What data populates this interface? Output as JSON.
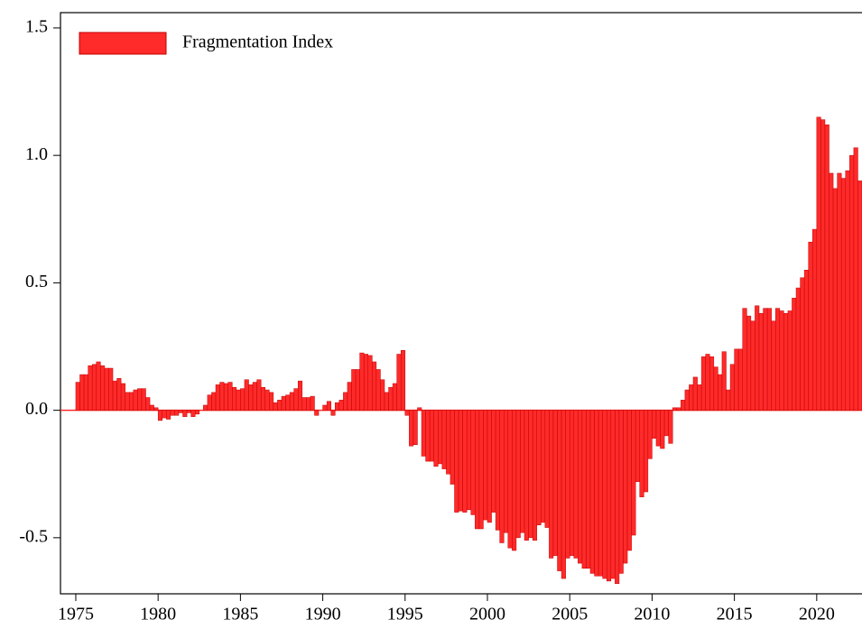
{
  "chart_data": {
    "type": "bar",
    "series": [
      {
        "name": "Fragmentation Index",
        "color": "#ff2a2a",
        "values": [
          0.11,
          0.14,
          0.14,
          0.175,
          0.18,
          0.19,
          0.175,
          0.165,
          0.165,
          0.115,
          0.125,
          0.105,
          0.07,
          0.07,
          0.08,
          0.085,
          0.085,
          0.05,
          0.02,
          0.01,
          -0.04,
          -0.03,
          -0.035,
          -0.02,
          -0.02,
          -0.01,
          -0.025,
          -0.01,
          -0.025,
          -0.015,
          0,
          0.02,
          0.06,
          0.07,
          0.1,
          0.11,
          0.105,
          0.11,
          0.09,
          0.08,
          0.085,
          0.12,
          0.1,
          0.11,
          0.12,
          0.09,
          0.08,
          0.07,
          0.03,
          0.04,
          0.055,
          0.06,
          0.07,
          0.085,
          0.115,
          0.05,
          0.05,
          0.055,
          -0.02,
          0,
          0.02,
          0.035,
          -0.02,
          0.03,
          0.04,
          0.07,
          0.11,
          0.16,
          0.16,
          0.225,
          0.22,
          0.215,
          0.19,
          0.16,
          0.12,
          0.07,
          0.09,
          0.105,
          0.22,
          0.235,
          -0.02,
          -0.14,
          -0.135,
          0.01,
          -0.18,
          -0.2,
          -0.2,
          -0.22,
          -0.21,
          -0.23,
          -0.25,
          -0.29,
          -0.4,
          -0.395,
          -0.4,
          -0.39,
          -0.41,
          -0.465,
          -0.465,
          -0.43,
          -0.44,
          -0.4,
          -0.47,
          -0.52,
          -0.48,
          -0.54,
          -0.55,
          -0.5,
          -0.48,
          -0.51,
          -0.5,
          -0.51,
          -0.45,
          -0.44,
          -0.46,
          -0.58,
          -0.57,
          -0.63,
          -0.66,
          -0.58,
          -0.57,
          -0.58,
          -0.6,
          -0.62,
          -0.62,
          -0.64,
          -0.65,
          -0.65,
          -0.66,
          -0.67,
          -0.66,
          -0.68,
          -0.64,
          -0.6,
          -0.55,
          -0.49,
          -0.28,
          -0.34,
          -0.32,
          -0.19,
          -0.11,
          -0.14,
          -0.15,
          -0.1,
          -0.13,
          0.01,
          0.01,
          0.04,
          0.08,
          0.1,
          0.13,
          0.1,
          0.21,
          0.22,
          0.21,
          0.17,
          0.14,
          0.23,
          0.08,
          0.18,
          0.24,
          0.24,
          0.4,
          0.37,
          0.35,
          0.41,
          0.38,
          0.4,
          0.4,
          0.35,
          0.4,
          0.39,
          0.38,
          0.39,
          0.44,
          0.48,
          0.52,
          0.55,
          0.66,
          0.71,
          1.15,
          1.14,
          1.12,
          0.93,
          0.87,
          0.93,
          0.91,
          0.94,
          1.0,
          1.03,
          0.9
        ]
      }
    ],
    "x": [
      1975,
      1975.25,
      1975.5,
      1975.75,
      1976,
      1976.25,
      1976.5,
      1976.75,
      1977,
      1977.25,
      1977.5,
      1977.75,
      1978,
      1978.25,
      1978.5,
      1978.75,
      1979,
      1979.25,
      1979.5,
      1979.75,
      1980,
      1980.25,
      1980.5,
      1980.75,
      1981,
      1981.25,
      1981.5,
      1981.75,
      1982,
      1982.25,
      1982.5,
      1982.75,
      1983,
      1983.25,
      1983.5,
      1983.75,
      1984,
      1984.25,
      1984.5,
      1984.75,
      1985,
      1985.25,
      1985.5,
      1985.75,
      1986,
      1986.25,
      1986.5,
      1986.75,
      1987,
      1987.25,
      1987.5,
      1987.75,
      1988,
      1988.25,
      1988.5,
      1988.75,
      1989,
      1989.25,
      1989.5,
      1989.75,
      1990,
      1990.25,
      1990.5,
      1990.75,
      1991,
      1991.25,
      1991.5,
      1991.75,
      1992,
      1992.25,
      1992.5,
      1992.75,
      1993,
      1993.25,
      1993.5,
      1993.75,
      1994,
      1994.25,
      1994.5,
      1994.75,
      1995,
      1995.25,
      1995.5,
      1995.75,
      1996,
      1996.25,
      1996.5,
      1996.75,
      1997,
      1997.25,
      1997.5,
      1997.75,
      1998,
      1998.25,
      1998.5,
      1998.75,
      1999,
      1999.25,
      1999.5,
      1999.75,
      2000,
      2000.25,
      2000.5,
      2000.75,
      2001,
      2001.25,
      2001.5,
      2001.75,
      2002,
      2002.25,
      2002.5,
      2002.75,
      2003,
      2003.25,
      2003.5,
      2003.75,
      2004,
      2004.25,
      2004.5,
      2004.75,
      2005,
      2005.25,
      2005.5,
      2005.75,
      2006,
      2006.25,
      2006.5,
      2006.75,
      2007,
      2007.25,
      2007.5,
      2007.75,
      2008,
      2008.25,
      2008.5,
      2008.75,
      2009,
      2009.25,
      2009.5,
      2009.75,
      2010,
      2010.25,
      2010.5,
      2010.75,
      2011,
      2011.25,
      2011.5,
      2011.75,
      2012,
      2012.25,
      2012.5,
      2012.75,
      2013,
      2013.25,
      2013.5,
      2013.75,
      2014,
      2014.25,
      2014.5,
      2014.75,
      2015,
      2015.25,
      2015.5,
      2015.75,
      2016,
      2016.25,
      2016.5,
      2016.75,
      2017,
      2017.25,
      2017.5,
      2017.75,
      2018,
      2018.25,
      2018.5,
      2018.75,
      2019,
      2019.25,
      2019.5,
      2019.75,
      2020,
      2020.25,
      2020.5,
      2020.75,
      2021,
      2021.25,
      2021.5,
      2021.75,
      2022,
      2022.25,
      2022.5
    ],
    "xlim": [
      1974.07,
      2022.75
    ],
    "xticks": [
      1975,
      1980,
      1985,
      1990,
      1995,
      2000,
      2005,
      2010,
      2015,
      2020
    ],
    "ylim": [
      -0.72,
      1.56
    ],
    "yticks": [
      -0.5,
      {
        "value": 0,
        "label": "0.0"
      },
      0.5,
      {
        "value": 1,
        "label": "1.0"
      },
      1.5
    ],
    "legend": "upper left"
  }
}
